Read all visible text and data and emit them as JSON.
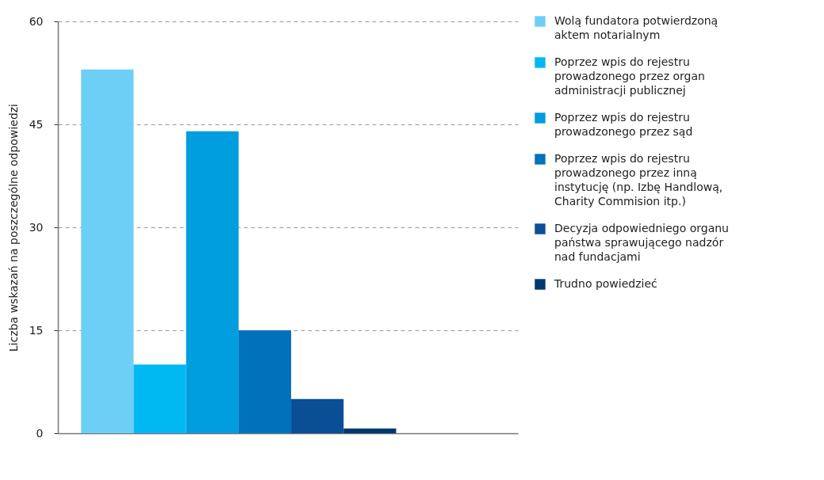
{
  "chart_data": {
    "type": "bar",
    "ylabel": "Liczba wskazań na poszczególne odpowiedzi",
    "categories": [
      null
    ],
    "series": [
      {
        "name": "Wolą fundatora potwierdzoną aktem notarialnym",
        "color": "#6dcff6",
        "values": [
          53
        ]
      },
      {
        "name": "Poprzez wpis do rejestru prowadzonego przez organ administracji publicznej",
        "color": "#00b9f2",
        "values": [
          10
        ]
      },
      {
        "name": "Poprzez wpis do rejestru prowadzonego przez sąd",
        "color": "#009ddf",
        "values": [
          44
        ]
      },
      {
        "name": "Poprzez wpis do rejestru prowadzonego przez inną instytucję (np. Izbę Handlową, Charity Commision itp.)",
        "color": "#0072bc",
        "values": [
          15
        ]
      },
      {
        "name": "Decyzja odpowiedniego organu państwa sprawującego nadzór nad fundacjami",
        "color": "#0a4e96",
        "values": [
          5
        ]
      },
      {
        "name": "Trudno powiedzieć",
        "color": "#003870",
        "values": [
          0.7
        ]
      }
    ],
    "ylim": [
      0,
      60
    ],
    "yticks": [
      0,
      15,
      30,
      45,
      60
    ],
    "grid": "y",
    "legend": "right"
  }
}
